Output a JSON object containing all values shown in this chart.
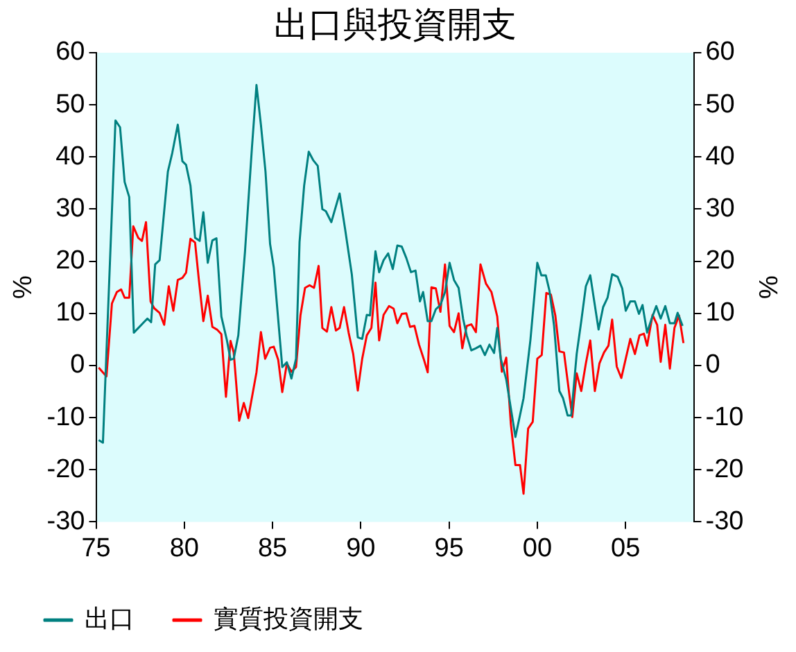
{
  "chart_data": {
    "type": "line",
    "title": "出口與投資開支",
    "ylabel": "%",
    "y2label": "%",
    "xlim": [
      1975,
      2008.9
    ],
    "xticks": [
      {
        "value": 1975,
        "label": "75"
      },
      {
        "value": 1980,
        "label": "80"
      },
      {
        "value": 1985,
        "label": "85"
      },
      {
        "value": 1990,
        "label": "90"
      },
      {
        "value": 1995,
        "label": "95"
      },
      {
        "value": 2000,
        "label": "00"
      },
      {
        "value": 2005,
        "label": "05"
      }
    ],
    "ylim": [
      -30,
      60
    ],
    "yticks": [
      -30,
      -20,
      -10,
      0,
      10,
      20,
      30,
      40,
      50,
      60
    ],
    "y2lim": [
      -30,
      60
    ],
    "y2ticks": [
      -30,
      -20,
      -10,
      0,
      10,
      20,
      30,
      40,
      50,
      60
    ],
    "grid": false,
    "legend": "bottom",
    "marker": "none",
    "line_style": "solid",
    "series": [
      {
        "name": "出口",
        "color": "#008080",
        "x": [
          1975.15,
          1975.39,
          1976.1,
          1976.36,
          1976.62,
          1976.88,
          1977.14,
          1977.91,
          1978.12,
          1978.35,
          1978.6,
          1979.07,
          1979.32,
          1979.63,
          1979.89,
          1980.1,
          1980.35,
          1980.61,
          1980.87,
          1981.08,
          1981.33,
          1981.59,
          1981.82,
          1982.1,
          1982.41,
          1982.62,
          1982.8,
          1983.06,
          1983.44,
          1983.83,
          1984.09,
          1984.34,
          1984.6,
          1984.86,
          1985.07,
          1985.55,
          1985.81,
          1986.07,
          1986.33,
          1986.53,
          1986.79,
          1987.05,
          1987.3,
          1987.56,
          1987.82,
          1988.02,
          1988.33,
          1988.8,
          1989.1,
          1989.49,
          1989.83,
          1990.08,
          1990.34,
          1990.52,
          1990.83,
          1991.04,
          1991.29,
          1991.55,
          1991.81,
          1992.07,
          1992.32,
          1992.58,
          1992.84,
          1993.1,
          1993.35,
          1993.53,
          1993.79,
          1994.0,
          1994.25,
          1994.51,
          1994.77,
          1995.03,
          1995.28,
          1995.54,
          1995.8,
          1996.0,
          1996.26,
          1996.52,
          1996.78,
          1997.03,
          1997.29,
          1997.55,
          1997.73,
          1997.93,
          1998.24,
          1998.76,
          1999.22,
          1999.61,
          2000.0,
          2000.23,
          2000.48,
          2000.69,
          2000.95,
          2001.25,
          2001.46,
          2001.72,
          2001.92,
          2002.23,
          2002.49,
          2002.75,
          2003.0,
          2003.47,
          2003.73,
          2003.98,
          2004.24,
          2004.55,
          2004.81,
          2005.01,
          2005.27,
          2005.53,
          2005.76,
          2005.96,
          2006.22,
          2006.48,
          2006.74,
          2006.99,
          2007.25,
          2007.51,
          2007.77,
          2007.95,
          2008.23
        ],
        "values": [
          -14.3,
          -14.8,
          47.0,
          45.7,
          35.2,
          32.3,
          6.3,
          9.0,
          8.3,
          19.4,
          20.2,
          37.2,
          40.8,
          46.2,
          39.2,
          38.5,
          34.5,
          24.5,
          23.9,
          29.4,
          19.7,
          24.0,
          24.4,
          9.4,
          4.9,
          1.1,
          1.3,
          5.8,
          21.9,
          41.7,
          53.8,
          46.2,
          37.2,
          23.3,
          18.8,
          -0.3,
          0.6,
          -2.5,
          1.3,
          23.7,
          34.5,
          41.0,
          39.4,
          38.3,
          30.0,
          29.6,
          27.5,
          33.0,
          26.4,
          17.5,
          5.4,
          5.1,
          9.7,
          9.6,
          21.9,
          17.9,
          20.2,
          21.5,
          18.5,
          23.0,
          22.8,
          20.6,
          17.9,
          18.2,
          12.3,
          14.1,
          8.5,
          8.5,
          10.8,
          11.6,
          14.1,
          19.7,
          16.4,
          14.9,
          8.9,
          5.8,
          2.9,
          3.3,
          3.8,
          2.0,
          4.0,
          2.4,
          7.2,
          1.3,
          -2.7,
          -13.7,
          -6.3,
          4.9,
          19.7,
          17.3,
          17.3,
          14.3,
          7.6,
          -4.9,
          -6.3,
          -9.6,
          -9.6,
          2.2,
          8.5,
          15.2,
          17.3,
          6.9,
          11.2,
          13.0,
          17.5,
          17.0,
          14.8,
          10.5,
          12.3,
          12.3,
          9.9,
          11.6,
          6.3,
          9.0,
          11.4,
          9.0,
          11.4,
          8.1,
          8.1,
          10.1,
          7.6
        ]
      },
      {
        "name": "實質投資開支",
        "color": "#ff0000",
        "x": [
          1975.15,
          1975.59,
          1975.9,
          1976.18,
          1976.42,
          1976.62,
          1976.88,
          1977.11,
          1977.39,
          1977.6,
          1977.83,
          1978.09,
          1978.29,
          1978.6,
          1978.86,
          1979.12,
          1979.38,
          1979.63,
          1979.89,
          1980.1,
          1980.35,
          1980.61,
          1980.82,
          1981.08,
          1981.33,
          1981.59,
          1981.85,
          1982.1,
          1982.36,
          1982.62,
          1982.8,
          1983.11,
          1983.37,
          1983.62,
          1984.09,
          1984.34,
          1984.58,
          1984.86,
          1985.07,
          1985.32,
          1985.55,
          1985.81,
          1986.07,
          1986.33,
          1986.58,
          1986.84,
          1987.1,
          1987.35,
          1987.61,
          1987.82,
          1988.08,
          1988.33,
          1988.59,
          1988.8,
          1989.05,
          1989.31,
          1989.57,
          1989.83,
          1990.08,
          1990.34,
          1990.6,
          1990.83,
          1991.04,
          1991.29,
          1991.6,
          1991.86,
          1992.07,
          1992.32,
          1992.58,
          1992.79,
          1993.04,
          1993.3,
          1993.56,
          1993.79,
          1994.0,
          1994.25,
          1994.51,
          1994.77,
          1995.03,
          1995.28,
          1995.54,
          1995.75,
          1996.0,
          1996.26,
          1996.52,
          1996.78,
          1997.09,
          1997.4,
          1997.73,
          1997.99,
          1998.24,
          1998.5,
          1998.76,
          1999.02,
          1999.22,
          1999.48,
          1999.74,
          2000.0,
          2000.25,
          2000.51,
          2000.77,
          2001.02,
          2001.25,
          2001.51,
          2001.98,
          2002.23,
          2002.49,
          2002.75,
          2003.0,
          2003.26,
          2003.52,
          2003.78,
          2004.03,
          2004.24,
          2004.5,
          2004.76,
          2005.01,
          2005.27,
          2005.53,
          2005.79,
          2006.04,
          2006.22,
          2006.53,
          2006.79,
          2006.99,
          2007.25,
          2007.51,
          2007.77,
          2008.03,
          2008.28
        ],
        "values": [
          -0.4,
          -2.1,
          11.9,
          14.1,
          14.6,
          13.0,
          13.0,
          26.7,
          24.5,
          23.9,
          27.5,
          12.3,
          11.0,
          10.1,
          7.8,
          15.2,
          10.5,
          16.4,
          16.8,
          17.8,
          24.3,
          23.6,
          16.6,
          8.5,
          13.4,
          7.4,
          6.9,
          6.0,
          -6.0,
          4.7,
          2.5,
          -10.6,
          -7.2,
          -10.1,
          -1.3,
          6.4,
          1.3,
          3.4,
          3.6,
          1.1,
          -5.1,
          0.4,
          -1.2,
          -0.3,
          9.6,
          14.9,
          15.4,
          14.9,
          19.1,
          7.2,
          6.5,
          11.2,
          6.7,
          7.2,
          11.2,
          6.3,
          2.2,
          -4.8,
          1.3,
          5.8,
          7.2,
          15.9,
          4.8,
          9.7,
          11.4,
          10.9,
          8.1,
          9.9,
          10.0,
          7.4,
          7.6,
          4.0,
          1.3,
          -1.3,
          15.0,
          14.8,
          10.3,
          19.4,
          7.6,
          6.4,
          10.0,
          3.3,
          7.6,
          7.9,
          6.4,
          19.4,
          15.7,
          14.1,
          9.4,
          -1.2,
          1.5,
          -11.2,
          -19.1,
          -19.1,
          -24.6,
          -12.1,
          -10.8,
          1.3,
          2.0,
          13.9,
          13.6,
          9.6,
          2.7,
          2.5,
          -9.9,
          -1.5,
          -4.9,
          0.4,
          4.8,
          -4.9,
          0.4,
          2.5,
          3.8,
          8.8,
          -0.2,
          -2.4,
          1.3,
          5.1,
          2.2,
          5.8,
          6.1,
          3.8,
          9.7,
          7.8,
          0.7,
          7.8,
          -0.6,
          7.2,
          9.6,
          4.3
        ]
      }
    ]
  }
}
